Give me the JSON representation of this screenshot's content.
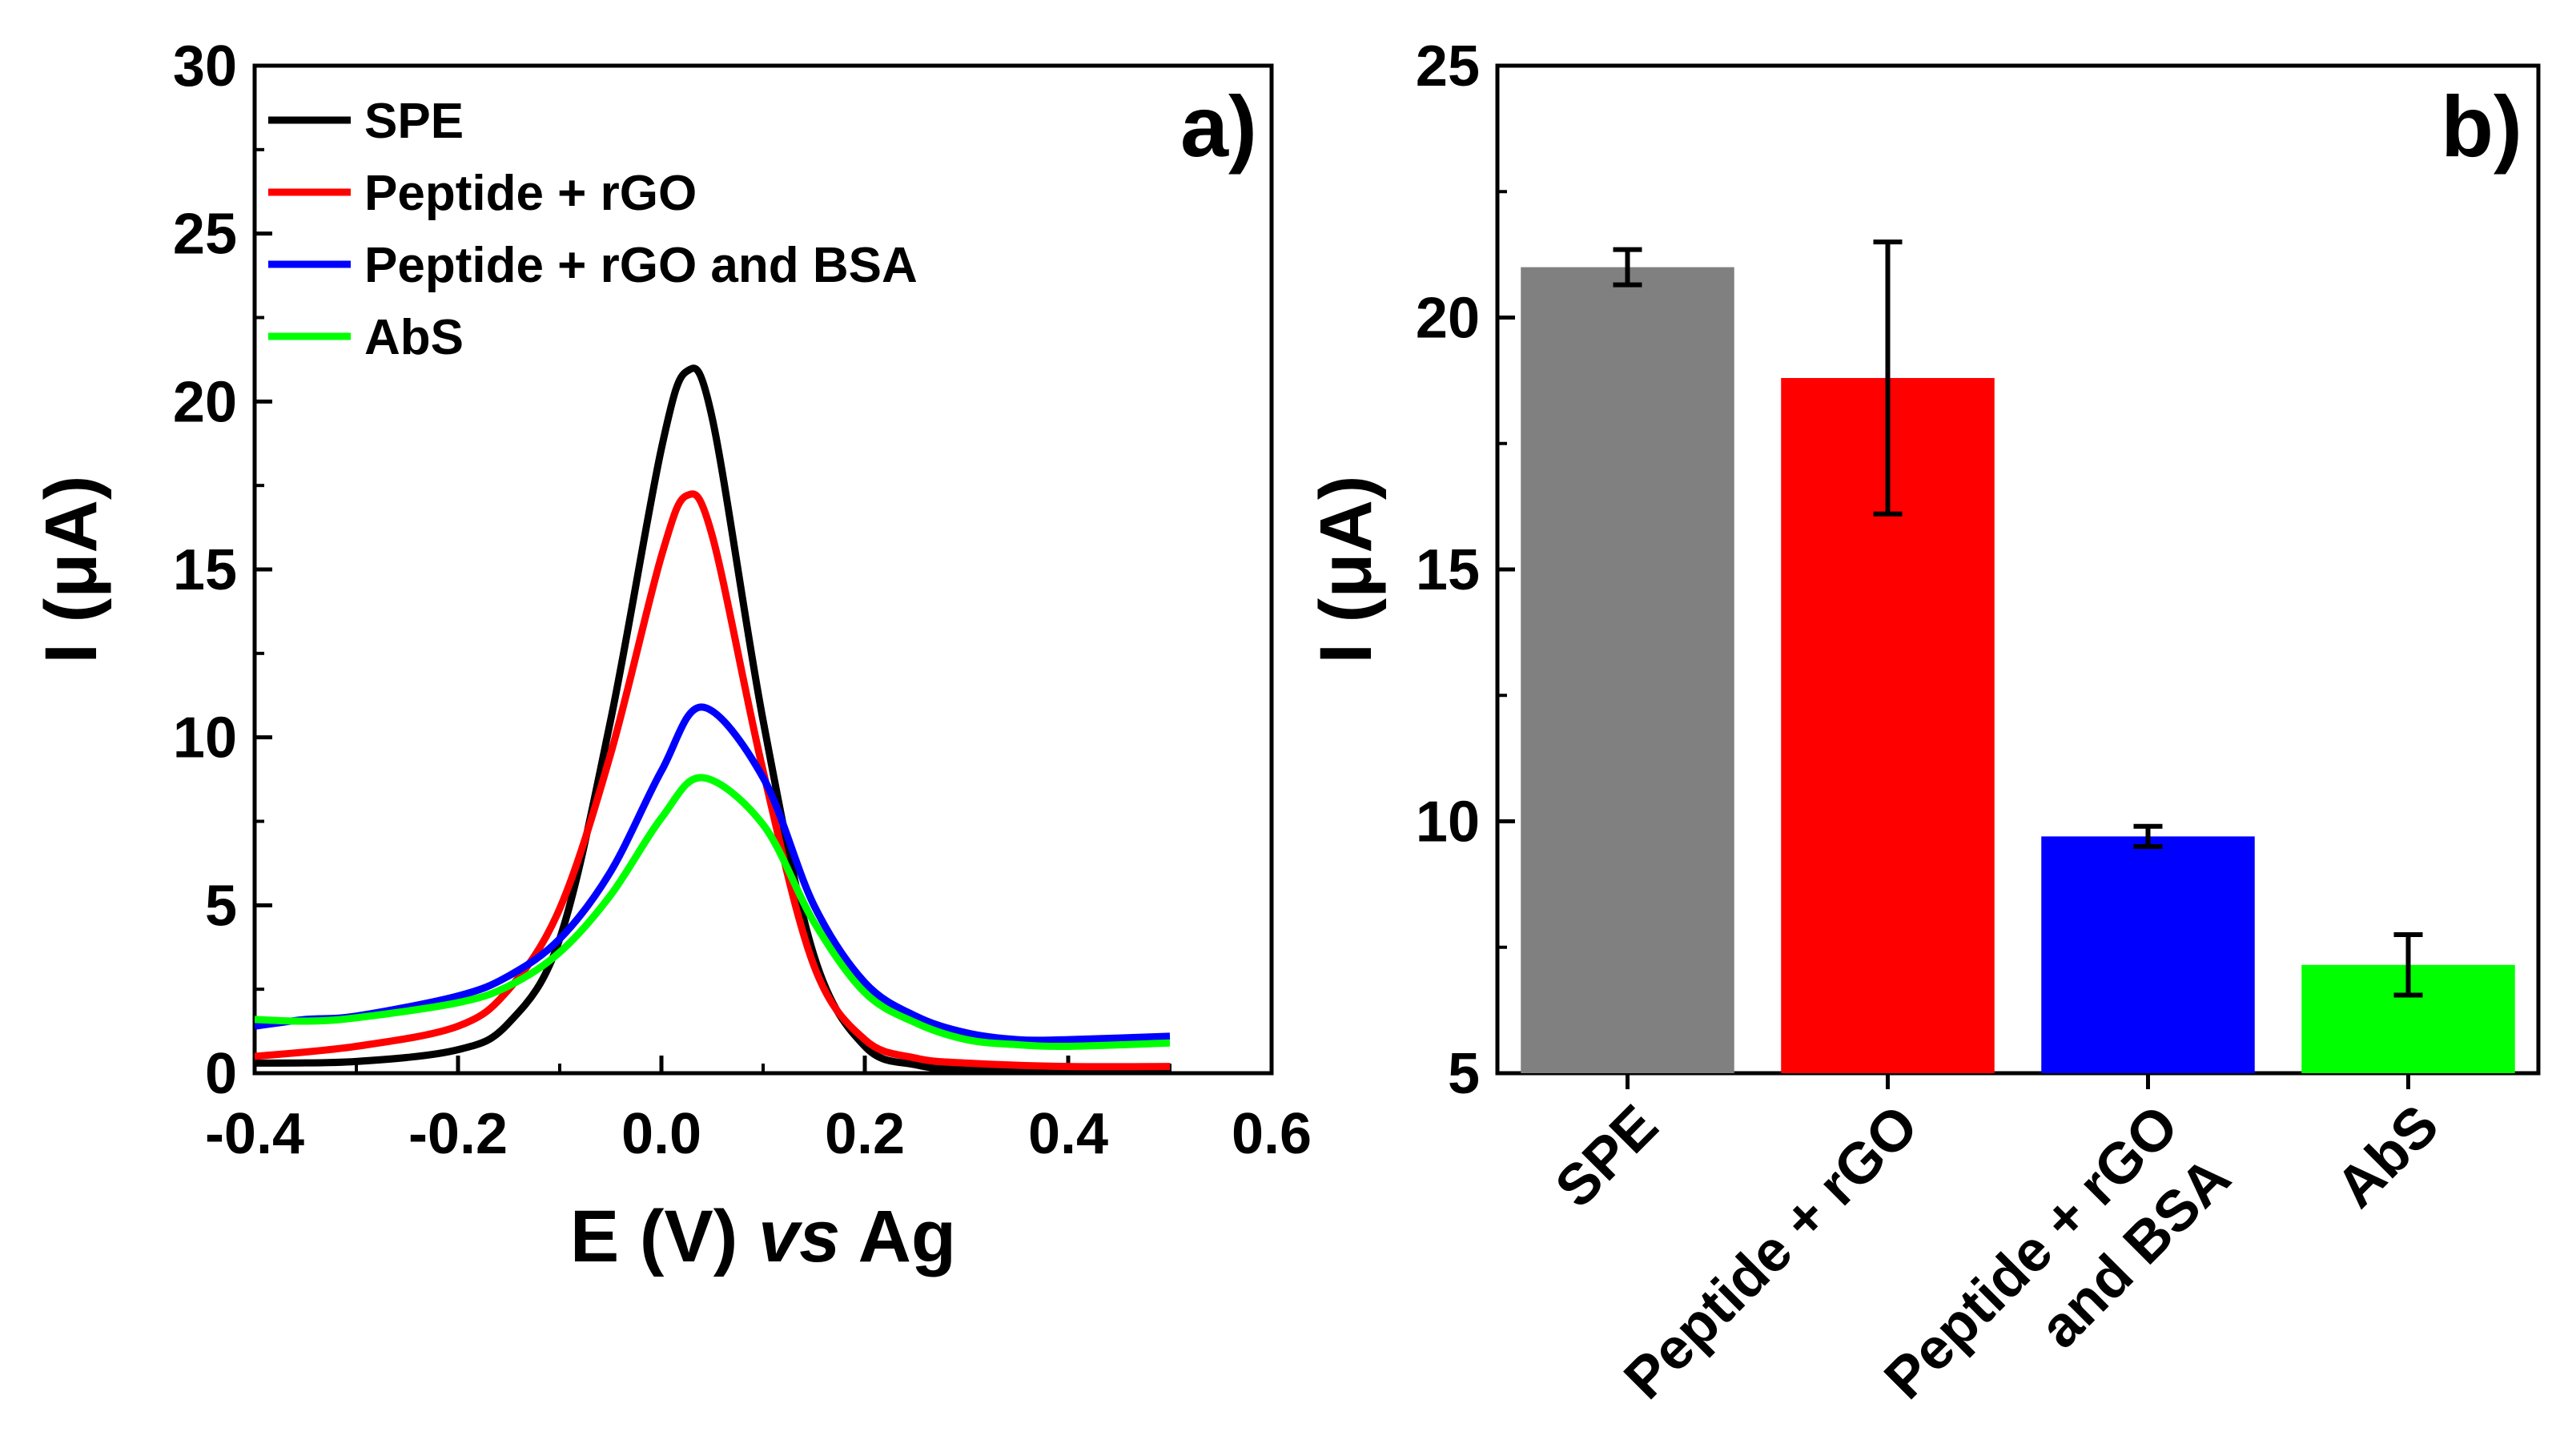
{
  "chart_data": [
    {
      "type": "line",
      "panel_label": "a)",
      "xlabel": "E (V) ",
      "xlabel_italic": "vs",
      "xlabel_tail": " Ag",
      "ylabel": "I (μA)",
      "xlim": [
        -0.4,
        0.6
      ],
      "ylim": [
        0,
        30
      ],
      "xticks": [
        -0.4,
        -0.2,
        0.0,
        0.2,
        0.4,
        0.6
      ],
      "xtick_labels": [
        "-0.4",
        "-0.2",
        "0.0",
        "0.2",
        "0.4",
        "0.6"
      ],
      "yticks": [
        0,
        5,
        10,
        15,
        20,
        25,
        30
      ],
      "ytick_labels": [
        "0",
        "5",
        "10",
        "15",
        "20",
        "25",
        "30"
      ],
      "legend_position": "top-left",
      "series": [
        {
          "name": "SPE",
          "color": "#000000",
          "x": [
            -0.4,
            -0.3,
            -0.2,
            -0.15,
            -0.1,
            -0.05,
            0.0,
            0.025,
            0.05,
            0.1,
            0.15,
            0.2,
            0.25,
            0.3,
            0.4,
            0.5
          ],
          "y": [
            0.3,
            0.35,
            0.7,
            1.5,
            4.0,
            10.5,
            18.6,
            20.9,
            19.5,
            10.5,
            3.5,
            0.8,
            0.25,
            0.1,
            0.05,
            0.05
          ]
        },
        {
          "name": "Peptide + rGO",
          "color": "#ff0000",
          "x": [
            -0.4,
            -0.3,
            -0.2,
            -0.15,
            -0.1,
            -0.05,
            0.0,
            0.025,
            0.05,
            0.1,
            0.15,
            0.2,
            0.25,
            0.3,
            0.4,
            0.5
          ],
          "y": [
            0.5,
            0.8,
            1.4,
            2.5,
            4.9,
            9.5,
            15.4,
            17.2,
            16.0,
            9.0,
            3.2,
            1.0,
            0.45,
            0.3,
            0.2,
            0.2
          ]
        },
        {
          "name": "Peptide + rGO and BSA",
          "color": "#0000ff",
          "x": [
            -0.4,
            -0.35,
            -0.3,
            -0.2,
            -0.15,
            -0.1,
            -0.05,
            0.0,
            0.04,
            0.1,
            0.15,
            0.2,
            0.25,
            0.3,
            0.35,
            0.4,
            0.5
          ],
          "y": [
            1.4,
            1.6,
            1.7,
            2.3,
            2.9,
            4.0,
            6.0,
            9.0,
            10.9,
            8.8,
            5.0,
            2.7,
            1.7,
            1.2,
            1.0,
            1.0,
            1.1
          ]
        },
        {
          "name": "AbS",
          "color": "#00ff00",
          "x": [
            -0.4,
            -0.35,
            -0.3,
            -0.2,
            -0.15,
            -0.1,
            -0.05,
            0.0,
            0.04,
            0.1,
            0.15,
            0.2,
            0.25,
            0.3,
            0.35,
            0.4,
            0.5
          ],
          "y": [
            1.6,
            1.55,
            1.65,
            2.1,
            2.6,
            3.6,
            5.3,
            7.6,
            8.8,
            7.4,
            4.5,
            2.4,
            1.5,
            1.0,
            0.85,
            0.8,
            0.9
          ]
        }
      ]
    },
    {
      "type": "bar",
      "panel_label": "b)",
      "xlabel": "",
      "ylabel": "I (μA)",
      "ylim": [
        5,
        25
      ],
      "yticks": [
        5,
        10,
        15,
        20,
        25
      ],
      "ytick_labels": [
        "5",
        "10",
        "15",
        "20",
        "25"
      ],
      "categories": [
        [
          "SPE"
        ],
        [
          "Peptide + rGO"
        ],
        [
          "Peptide + rGO",
          "and BSA"
        ],
        [
          "AbS"
        ]
      ],
      "values": [
        21.0,
        18.8,
        9.7,
        7.15
      ],
      "errors": [
        0.35,
        2.7,
        0.2,
        0.6
      ],
      "colors": [
        "#808080",
        "#ff0000",
        "#0000ff",
        "#00ff00"
      ]
    }
  ]
}
